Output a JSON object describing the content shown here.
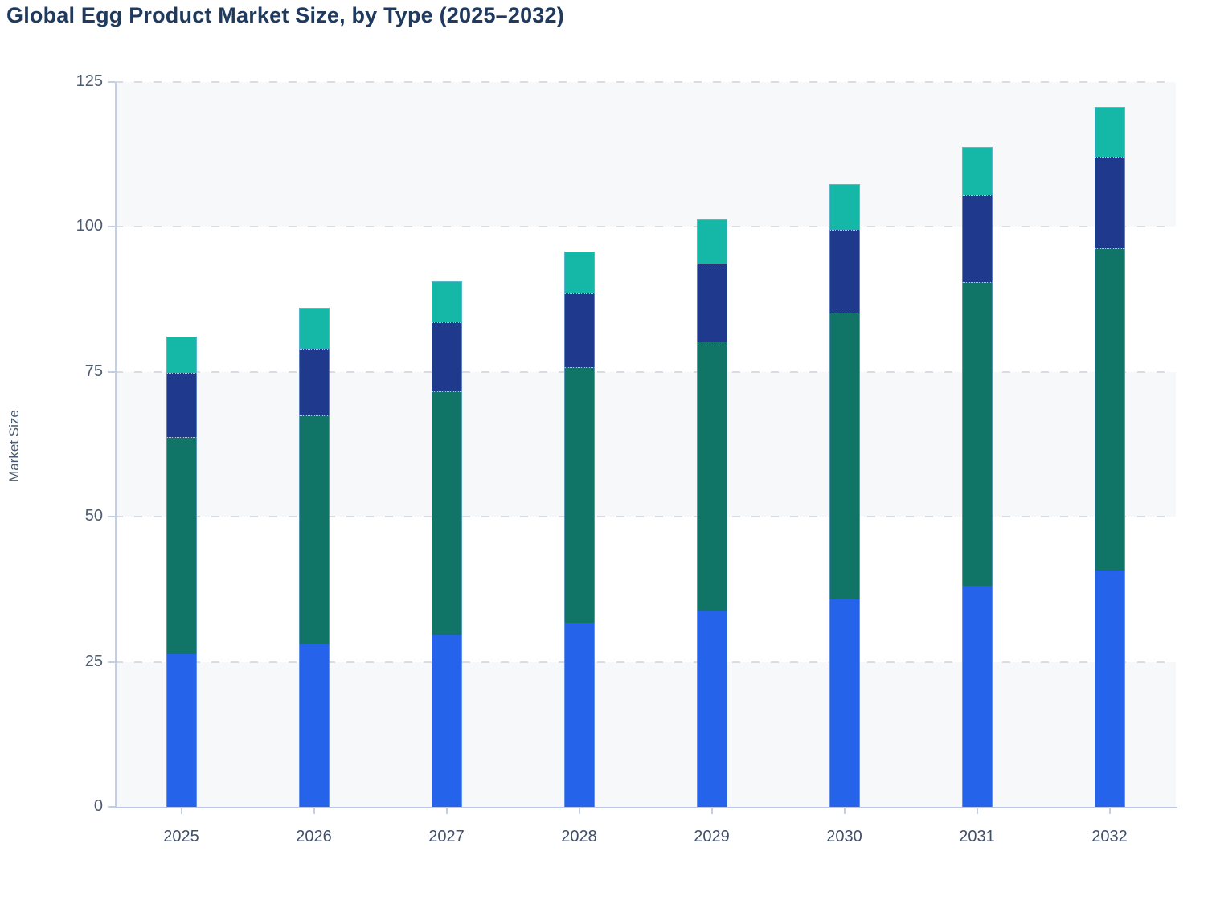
{
  "title": "Global Egg Product Market Size, by Type (2025–2032)",
  "chart_data": {
    "type": "bar",
    "stacked": true,
    "title": "Global Egg Product Market Size, by Type (2025–2032)",
    "xlabel": "",
    "ylabel": "Market Size",
    "ylim": [
      0,
      125
    ],
    "yticks": [
      "0",
      "25",
      "50",
      "75",
      "100",
      "125"
    ],
    "grid": "horizontal-dashed",
    "legend": "none",
    "categories": [
      "2025",
      "2026",
      "2027",
      "2028",
      "2029",
      "2030",
      "2031",
      "2032"
    ],
    "series": [
      {
        "name": "series-1-blue",
        "color": "#2563EB",
        "values": [
          26.4,
          28.0,
          29.7,
          31.7,
          33.8,
          35.8,
          38.1,
          40.7
        ]
      },
      {
        "name": "series-2-green",
        "color": "#107467",
        "values": [
          37.4,
          39.5,
          41.9,
          44.1,
          46.5,
          49.4,
          52.4,
          55.6
        ]
      },
      {
        "name": "series-3-navy",
        "color": "#1F3A8C",
        "values": [
          11.1,
          11.5,
          12.0,
          12.8,
          13.4,
          14.3,
          14.9,
          15.8
        ]
      },
      {
        "name": "series-4-teal",
        "color": "#15B8A6",
        "values": [
          6.2,
          7.0,
          7.0,
          7.2,
          7.6,
          7.9,
          8.4,
          8.6
        ]
      }
    ],
    "totals": [
      81.1,
      86.0,
      90.6,
      95.8,
      101.3,
      107.4,
      113.8,
      120.7
    ]
  }
}
